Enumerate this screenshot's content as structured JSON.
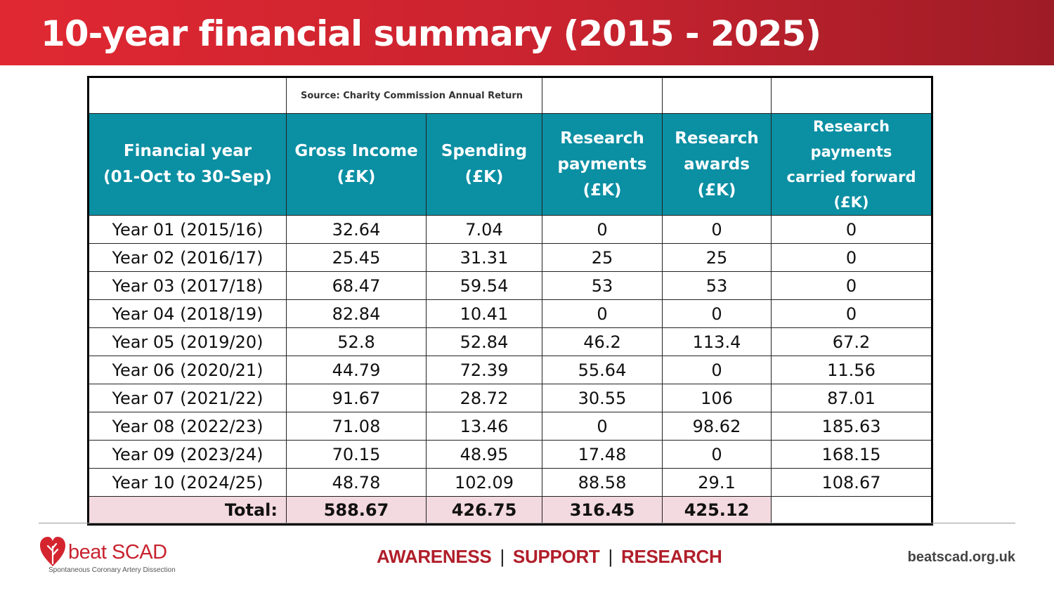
{
  "title": "10-year financial summary (2015 - 2025)",
  "table": {
    "source": "Source: Charity Commission Annual Return",
    "headers": [
      [
        "Financial year",
        "(01-Oct to 30-Sep)"
      ],
      [
        "Gross Income",
        "(£K)"
      ],
      [
        "Spending",
        "(£K)"
      ],
      [
        "Research",
        "payments",
        "(£K)"
      ],
      [
        "Research",
        "awards",
        "(£K)"
      ],
      [
        "Research payments",
        "carried forward",
        "(£K)"
      ]
    ],
    "rows": [
      [
        "Year 01 (2015/16)",
        "32.64",
        "7.04",
        "0",
        "0",
        "0"
      ],
      [
        "Year 02 (2016/17)",
        "25.45",
        "31.31",
        "25",
        "25",
        "0"
      ],
      [
        "Year 03 (2017/18)",
        "68.47",
        "59.54",
        "53",
        "53",
        "0"
      ],
      [
        "Year 04 (2018/19)",
        "82.84",
        "10.41",
        "0",
        "0",
        "0"
      ],
      [
        "Year 05 (2019/20)",
        "52.8",
        "52.84",
        "46.2",
        "113.4",
        "67.2"
      ],
      [
        "Year 06 (2020/21)",
        "44.79",
        "72.39",
        "55.64",
        "0",
        "11.56"
      ],
      [
        "Year 07 (2021/22)",
        "91.67",
        "28.72",
        "30.55",
        "106",
        "87.01"
      ],
      [
        "Year 08 (2022/23)",
        "71.08",
        "13.46",
        "0",
        "98.62",
        "185.63"
      ],
      [
        "Year 09 (2023/24)",
        "70.15",
        "48.95",
        "17.48",
        "0",
        "168.15"
      ],
      [
        "Year 10 (2024/25)",
        "48.78",
        "102.09",
        "88.58",
        "29.1",
        "108.67"
      ]
    ],
    "total": [
      "Total:",
      "588.67",
      "426.75",
      "316.45",
      "425.12",
      ""
    ]
  },
  "footer": {
    "logo_text": "beat SCAD",
    "logo_subtitle": "Spontaneous Coronary Artery Dissection",
    "tagline": [
      "AWARENESS",
      "SUPPORT",
      "RESEARCH"
    ],
    "separator": "|",
    "website": "beatscad.org.uk"
  },
  "colors": {
    "header_bar": "#d4252f",
    "table_header": "#0b8fa3",
    "total_row": "#f3d9e0",
    "brand_red": "#b01e2a"
  },
  "icons": [
    "heart-logo-icon"
  ]
}
